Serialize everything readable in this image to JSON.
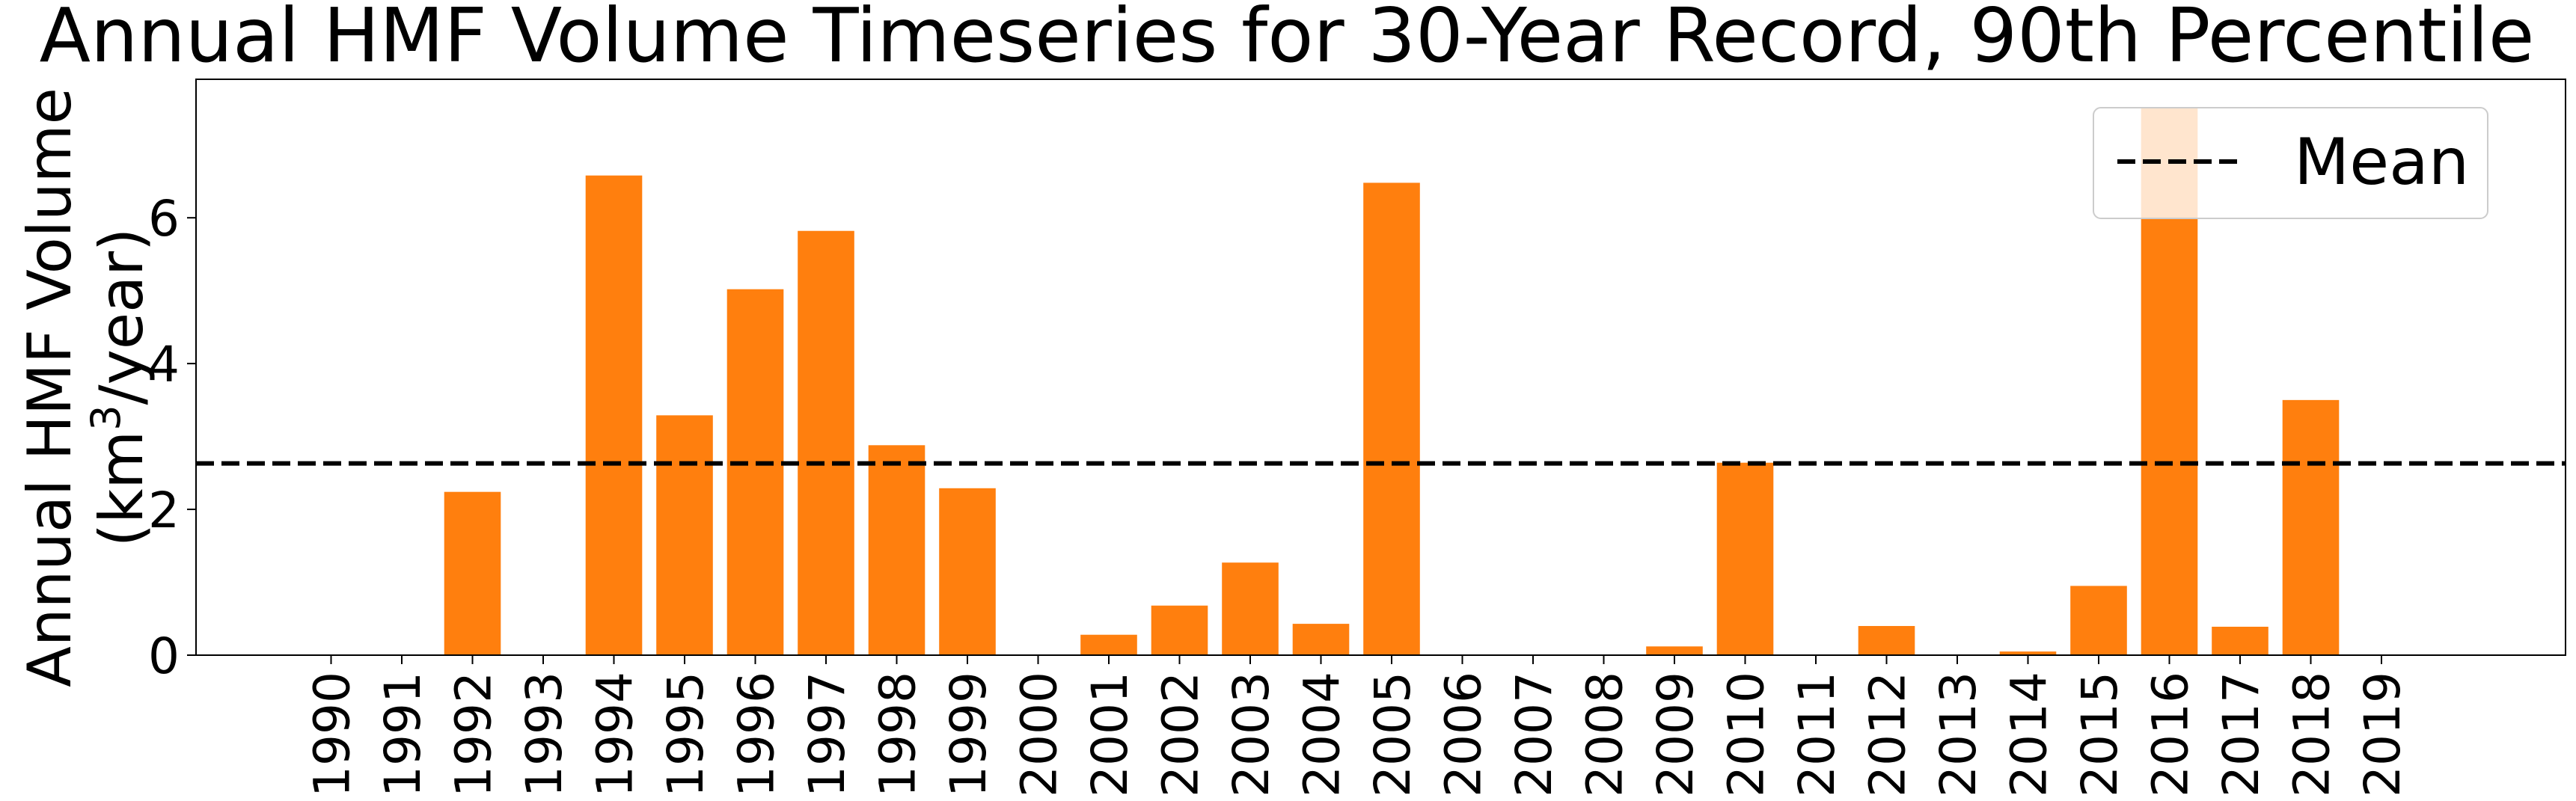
{
  "chart_data": {
    "type": "bar",
    "title": "Annual HMF Volume Timeseries for 30-Year Record, 90th Percentile",
    "ylabel_line1": "Annual HMF Volume",
    "ylabel_line2_prefix": "(km",
    "ylabel_line2_sup": "3",
    "ylabel_line2_suffix": "/year)",
    "xlabel": "",
    "categories": [
      "1990",
      "1991",
      "1992",
      "1993",
      "1994",
      "1995",
      "1996",
      "1997",
      "1998",
      "1999",
      "2000",
      "2001",
      "2002",
      "2003",
      "2004",
      "2005",
      "2006",
      "2007",
      "2008",
      "2009",
      "2010",
      "2011",
      "2012",
      "2013",
      "2014",
      "2015",
      "2016",
      "2017",
      "2018",
      "2019"
    ],
    "values": [
      0,
      0,
      2.24,
      0,
      6.58,
      3.29,
      5.02,
      5.82,
      2.88,
      2.29,
      0,
      0.28,
      0.68,
      1.27,
      0.43,
      6.48,
      0,
      0,
      0,
      0.12,
      2.64,
      0,
      0.4,
      0,
      0.05,
      0.95,
      7.52,
      0.39,
      3.5,
      0
    ],
    "yticks": [
      0,
      2,
      4,
      6
    ],
    "ylim": [
      0,
      7.9
    ],
    "bar_color": "#ff7f0e",
    "mean": 2.63,
    "mean_line_color": "#000000",
    "legend": {
      "label": "Mean",
      "position": "top-right"
    },
    "grid": false
  }
}
